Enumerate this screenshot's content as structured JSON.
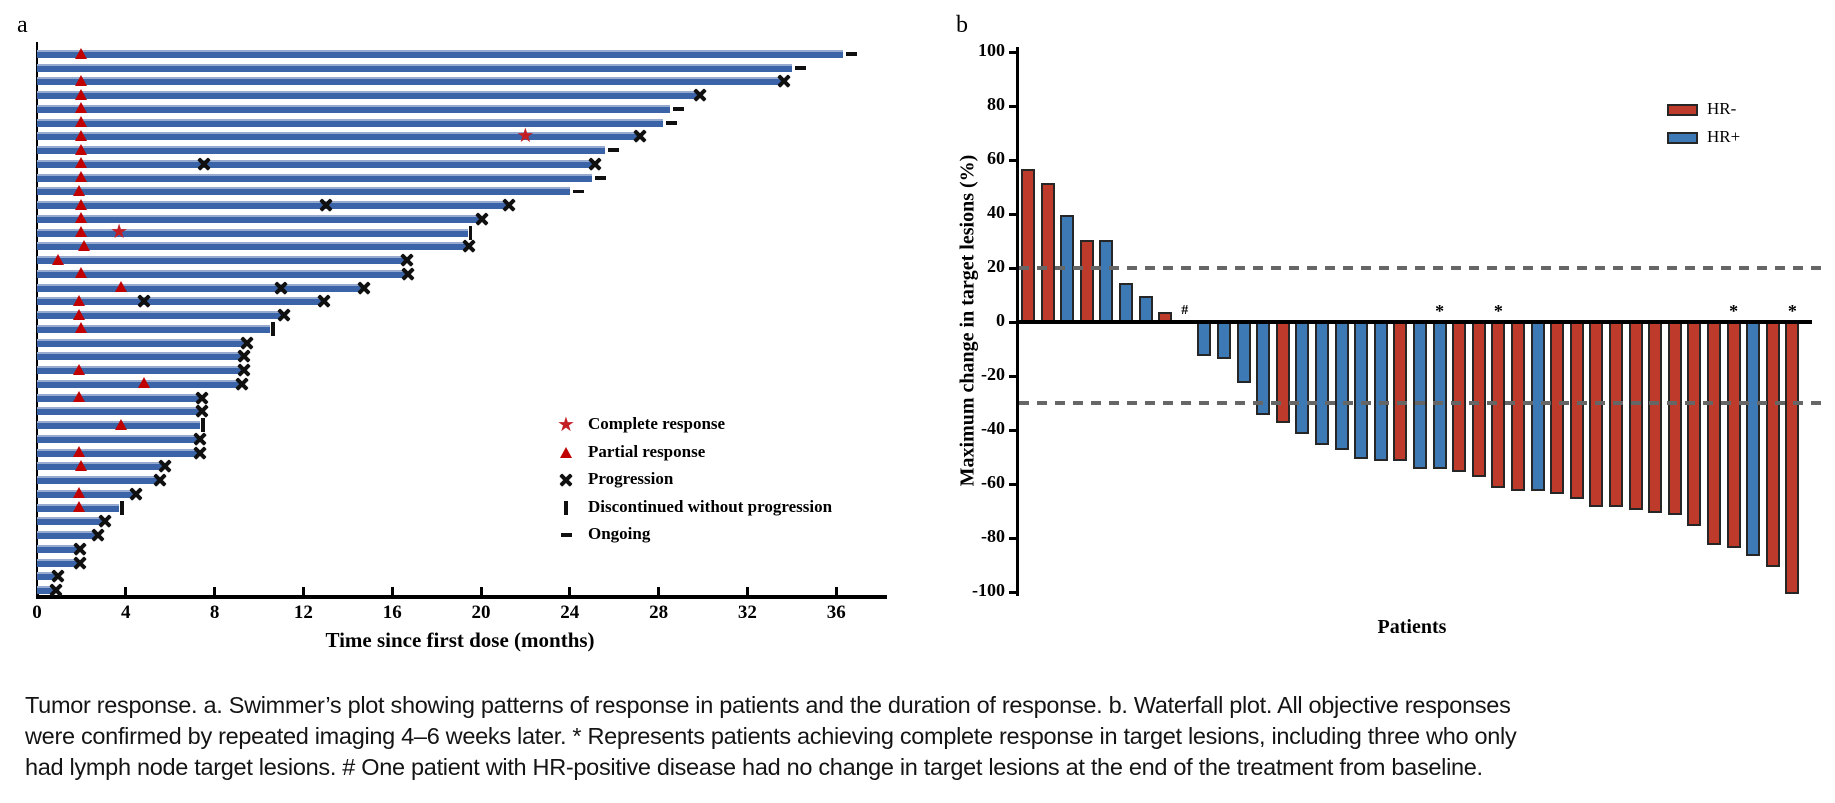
{
  "figure": {
    "panel_a_label": "a",
    "panel_b_label": "b",
    "caption": "Tumor response. a. Swimmer’s plot showing patterns of response in patients and the duration of response. b. Waterfall plot. All objective responses were confirmed by repeated imaging 4–6 weeks later. * Represents patients achieving complete response in target lesions, including three who only had lymph node target lesions. # One patient with HR-positive disease had no change in target lesions at the end of the treatment from baseline."
  },
  "colors": {
    "swimmer_bar": "#3a63a8",
    "swimmer_bar_highlight": "#97abd0",
    "triangle_red": "#c00000",
    "star_red": "#c41e25",
    "marker_black": "#101010",
    "hr_negative_red": "#be3b2b",
    "hr_positive_blue": "#3d7ab5",
    "bar_border": "#262626",
    "dashed_gray": "#666666"
  },
  "chart_data": [
    {
      "id": "swimmer",
      "type": "bar",
      "orientation": "horizontal",
      "xlabel": "Time since first dose (months)",
      "xlim": [
        0,
        38
      ],
      "xticks": [
        0,
        4,
        8,
        12,
        16,
        20,
        24,
        28,
        32,
        36
      ],
      "grid": false,
      "legend_position": "inside-lower-right",
      "legend": [
        {
          "marker": "star",
          "label": "Complete response"
        },
        {
          "marker": "triangle",
          "label": "Partial response"
        },
        {
          "marker": "x",
          "label": "Progression"
        },
        {
          "marker": "vbar",
          "label": "Discontinued without progression"
        },
        {
          "marker": "dash",
          "label": "Ongoing"
        }
      ],
      "patients": [
        {
          "duration": 36.3,
          "end": "ongoing",
          "partial_response": [
            2
          ]
        },
        {
          "duration": 34.0,
          "end": "ongoing",
          "partial_response": []
        },
        {
          "duration": 33.6,
          "end": "progression",
          "partial_response": [
            2
          ]
        },
        {
          "duration": 29.8,
          "end": "progression",
          "partial_response": [
            2
          ]
        },
        {
          "duration": 28.5,
          "end": "ongoing",
          "partial_response": [
            2
          ]
        },
        {
          "duration": 28.2,
          "end": "ongoing",
          "partial_response": [
            2
          ]
        },
        {
          "duration": 27.1,
          "end": "progression",
          "partial_response": [
            2
          ],
          "complete_response": [
            22
          ]
        },
        {
          "duration": 25.6,
          "end": "ongoing",
          "partial_response": [
            2
          ]
        },
        {
          "duration": 25.1,
          "end": "progression",
          "partial_response": [
            2
          ],
          "progression_events": [
            7.5
          ]
        },
        {
          "duration": 25.0,
          "end": "ongoing",
          "partial_response": [
            2
          ]
        },
        {
          "duration": 24.0,
          "end": "ongoing",
          "partial_response": [
            1.9
          ]
        },
        {
          "duration": 21.2,
          "end": "progression",
          "partial_response": [
            2
          ],
          "progression_events": [
            13
          ]
        },
        {
          "duration": 20.0,
          "end": "progression",
          "partial_response": [
            2
          ]
        },
        {
          "duration": 19.4,
          "end": "discontinued",
          "partial_response": [
            2
          ],
          "complete_response": [
            3.7
          ]
        },
        {
          "duration": 19.4,
          "end": "progression",
          "partial_response": [
            2.1
          ]
        },
        {
          "duration": 16.6,
          "end": "progression",
          "partial_response": [
            0.95
          ]
        },
        {
          "duration": 16.65,
          "end": "progression",
          "partial_response": [
            2
          ]
        },
        {
          "duration": 14.7,
          "end": "progression",
          "partial_response": [
            3.8
          ],
          "progression_events": [
            11
          ]
        },
        {
          "duration": 12.9,
          "end": "progression",
          "partial_response": [
            1.9
          ],
          "progression_events": [
            4.8
          ]
        },
        {
          "duration": 11.1,
          "end": "progression",
          "partial_response": [
            1.9
          ]
        },
        {
          "duration": 10.5,
          "end": "discontinued",
          "partial_response": [
            2
          ]
        },
        {
          "duration": 9.4,
          "end": "progression",
          "partial_response": []
        },
        {
          "duration": 9.3,
          "end": "progression",
          "partial_response": []
        },
        {
          "duration": 9.3,
          "end": "progression",
          "partial_response": [
            1.9
          ]
        },
        {
          "duration": 9.2,
          "end": "progression",
          "partial_response": [
            4.8
          ]
        },
        {
          "duration": 7.4,
          "end": "progression",
          "partial_response": [
            1.9
          ]
        },
        {
          "duration": 7.4,
          "end": "progression",
          "partial_response": []
        },
        {
          "duration": 7.35,
          "end": "discontinued",
          "partial_response": [
            3.8
          ]
        },
        {
          "duration": 7.3,
          "end": "progression",
          "partial_response": []
        },
        {
          "duration": 7.3,
          "end": "progression",
          "partial_response": [
            1.9
          ]
        },
        {
          "duration": 5.7,
          "end": "progression",
          "partial_response": [
            2
          ]
        },
        {
          "duration": 5.5,
          "end": "progression",
          "partial_response": []
        },
        {
          "duration": 4.4,
          "end": "progression",
          "partial_response": [
            1.9
          ]
        },
        {
          "duration": 3.7,
          "end": "discontinued",
          "partial_response": [
            1.9
          ]
        },
        {
          "duration": 3.0,
          "end": "progression",
          "partial_response": []
        },
        {
          "duration": 2.7,
          "end": "progression",
          "partial_response": []
        },
        {
          "duration": 1.9,
          "end": "progression",
          "partial_response": []
        },
        {
          "duration": 1.9,
          "end": "progression",
          "partial_response": []
        },
        {
          "duration": 0.9,
          "end": "progression",
          "partial_response": []
        },
        {
          "duration": 0.8,
          "end": "progression",
          "partial_response": []
        }
      ]
    },
    {
      "id": "waterfall",
      "type": "bar",
      "ylabel": "Maximum change in target lesions (%)",
      "xlabel": "Patients",
      "ylim": [
        -100,
        100
      ],
      "yticks": [
        100,
        80,
        60,
        40,
        20,
        0,
        -20,
        -40,
        -60,
        -80,
        -100
      ],
      "grid": false,
      "reference_lines": [
        20,
        -30
      ],
      "legend_position": "upper-right",
      "legend": [
        {
          "label": "HR-",
          "color": "#be3b2b"
        },
        {
          "label": "HR+",
          "color": "#3d7ab5"
        }
      ],
      "values": [
        56,
        51,
        39,
        30,
        30,
        14,
        9,
        3,
        0,
        -12,
        -13,
        -22,
        -34,
        -37,
        -41,
        -45,
        -47,
        -50,
        -51,
        -51,
        -54,
        -54,
        -55,
        -57,
        -61,
        -62,
        -62,
        -63,
        -65,
        -68,
        -68,
        -69,
        -70,
        -71,
        -75,
        -82,
        -83,
        -86,
        -90,
        -100
      ],
      "groups": [
        "HR-",
        "HR-",
        "HR+",
        "HR-",
        "HR+",
        "HR+",
        "HR+",
        "HR-",
        "HR+",
        "HR+",
        "HR+",
        "HR+",
        "HR+",
        "HR-",
        "HR+",
        "HR+",
        "HR+",
        "HR+",
        "HR+",
        "HR-",
        "HR+",
        "HR+",
        "HR-",
        "HR-",
        "HR-",
        "HR-",
        "HR+",
        "HR-",
        "HR-",
        "HR-",
        "HR-",
        "HR-",
        "HR-",
        "HR-",
        "HR-",
        "HR-",
        "HR-",
        "HR+",
        "HR-",
        "HR-"
      ],
      "annotations": [
        {
          "patient": 9,
          "symbol": "#"
        },
        {
          "patient": 22,
          "symbol": "*"
        },
        {
          "patient": 25,
          "symbol": "*"
        },
        {
          "patient": 37,
          "symbol": "*"
        },
        {
          "patient": 40,
          "symbol": "*"
        }
      ]
    }
  ]
}
